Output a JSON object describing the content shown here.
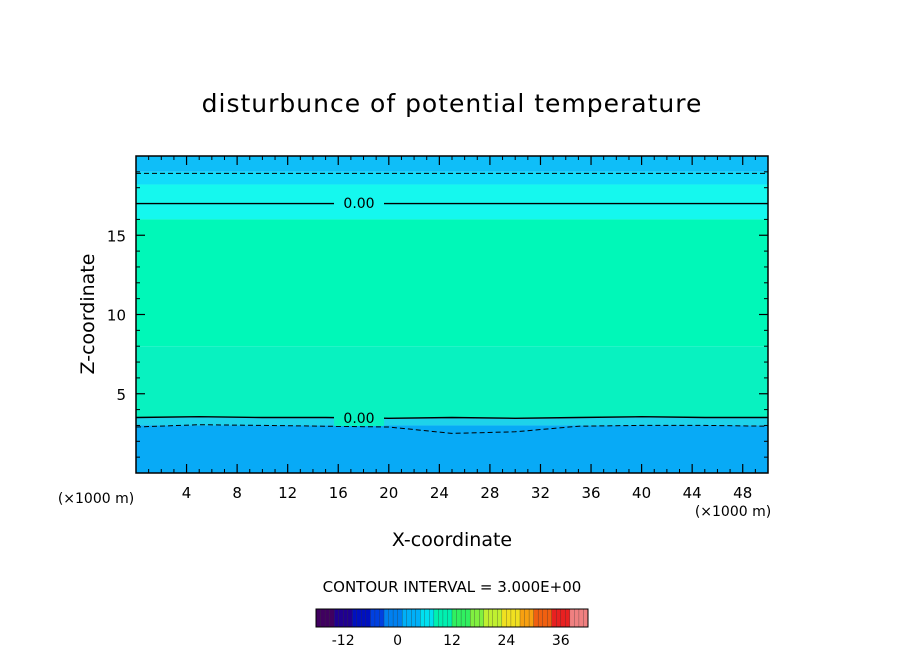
{
  "chart_data": {
    "type": "contour",
    "title": "disturbunce of potential temperature",
    "xlabel": "X-coordinate",
    "ylabel": "Z-coordinate",
    "x_unit": "(×1000 m)",
    "y_unit": "(×1000 m)",
    "xlim": [
      0,
      50
    ],
    "ylim": [
      0,
      20
    ],
    "x_ticks": [
      4,
      8,
      12,
      16,
      20,
      24,
      28,
      32,
      36,
      40,
      44,
      48
    ],
    "y_ticks": [
      5,
      10,
      15
    ],
    "contour_interval_text": "CONTOUR INTERVAL = 3.000E+00",
    "contour_labels": [
      "0.00",
      "0.00"
    ],
    "layers": [
      {
        "z_from": 19.0,
        "z_to": 20.0,
        "color": "#0fbef8"
      },
      {
        "z_from": 18.2,
        "z_to": 19.0,
        "color": "#12dcfb"
      },
      {
        "z_from": 16.0,
        "z_to": 18.2,
        "color": "#15f8ee"
      },
      {
        "z_from": 8.0,
        "z_to": 16.0,
        "color": "#00f8b8"
      },
      {
        "z_from": 3.5,
        "z_to": 8.0,
        "color": "#08f2c0"
      },
      {
        "z_from": 3.0,
        "z_to": 3.5,
        "color": "#1ed2ea"
      },
      {
        "z_from": 0.0,
        "z_to": 3.0,
        "color": "#08aaf6"
      }
    ],
    "contours": [
      {
        "level": "0.00",
        "style": "solid",
        "z": [
          17.0,
          17.0,
          17.0,
          17.0,
          17.0,
          17.0,
          17.0,
          17.0,
          17.0,
          17.0,
          17.0
        ]
      },
      {
        "level": "0.00",
        "style": "solid",
        "z": [
          3.5,
          3.55,
          3.5,
          3.5,
          3.45,
          3.5,
          3.45,
          3.5,
          3.55,
          3.5,
          3.5
        ]
      },
      {
        "level": "-3.00",
        "style": "dashed",
        "z": [
          18.9,
          18.9,
          18.9,
          18.9,
          18.9,
          18.9,
          18.9,
          18.9,
          18.9,
          18.9,
          18.9
        ]
      },
      {
        "level": "-3.00",
        "style": "dashed",
        "z": [
          2.9,
          3.05,
          3.0,
          2.95,
          2.9,
          2.5,
          2.6,
          2.95,
          3.0,
          3.0,
          2.95
        ]
      }
    ],
    "contour_x": [
      0,
      5,
      10,
      15,
      20,
      25,
      30,
      35,
      40,
      45,
      50
    ],
    "colorbar": {
      "min": -18,
      "max": 42,
      "tick_values": [
        -12,
        0,
        12,
        24,
        36
      ],
      "tick_labels": [
        "-12",
        "0",
        "12",
        "24",
        "36"
      ],
      "colors": [
        "#400060",
        "#200090",
        "#0010c0",
        "#0040e0",
        "#0080f0",
        "#00b0f8",
        "#00e0f0",
        "#00f0b0",
        "#30f060",
        "#80f040",
        "#c0f030",
        "#f0e020",
        "#f8a010",
        "#f06010",
        "#e82020",
        "#f08080"
      ]
    }
  }
}
